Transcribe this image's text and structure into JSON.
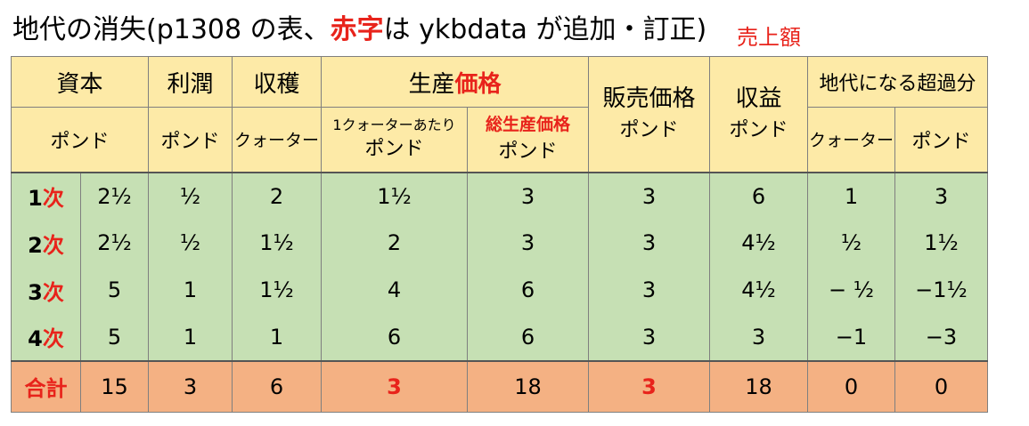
{
  "title": {
    "prefix": "地代の消失(p1308 の表、",
    "red_word": "赤字",
    "suffix": "は ykbdata が追加・訂正)"
  },
  "annotation": "売上額",
  "columns": {
    "capital": {
      "top": "資本",
      "unit": "ポンド"
    },
    "profit": {
      "top": "利潤",
      "unit": "ポンド"
    },
    "harvest": {
      "top": "収穫",
      "unit": "クォーター"
    },
    "production_price": {
      "top_black": "生産",
      "top_red": "価格"
    },
    "per_quarter": {
      "top": "1クォーターあたり",
      "unit": "ポンド"
    },
    "total_production_price": {
      "top": "総生産価格",
      "unit": "ポンド"
    },
    "selling_price": {
      "top": "販売価格",
      "unit": "ポンド"
    },
    "revenue": {
      "top": "収益",
      "unit": "ポンド"
    },
    "rent_surplus": {
      "top": "地代になる超過分"
    },
    "rent_quarter": {
      "unit": "クォーター"
    },
    "rent_pound": {
      "unit": "ポンド"
    }
  },
  "rows": [
    {
      "num": "1",
      "kanji": "次",
      "capital": "2¹⁄₂",
      "profit": "¹⁄₂",
      "harvest": "2",
      "per_quarter": "1¹⁄₂",
      "total_price": "3",
      "selling_price": "3",
      "revenue": "6",
      "rent_quarter": "1",
      "rent_pound": "3"
    },
    {
      "num": "2",
      "kanji": "次",
      "capital": "2¹⁄₂",
      "profit": "¹⁄₂",
      "harvest": "1¹⁄₂",
      "per_quarter": "2",
      "total_price": "3",
      "selling_price": "3",
      "revenue": "4¹⁄₂",
      "rent_quarter": "¹⁄₂",
      "rent_pound": "1¹⁄₂"
    },
    {
      "num": "3",
      "kanji": "次",
      "capital": "5",
      "profit": "1",
      "harvest": "1¹⁄₂",
      "per_quarter": "4",
      "total_price": "6",
      "selling_price": "3",
      "revenue": "4¹⁄₂",
      "rent_quarter": "− ¹⁄₂",
      "rent_pound": "−1¹⁄₂"
    },
    {
      "num": "4",
      "kanji": "次",
      "capital": "5",
      "profit": "1",
      "harvest": "1",
      "per_quarter": "6",
      "total_price": "6",
      "selling_price": "3",
      "revenue": "3",
      "rent_quarter": "−1",
      "rent_pound": "−3"
    }
  ],
  "total": {
    "label": "合計",
    "capital": "15",
    "profit": "3",
    "harvest": "6",
    "per_quarter": "3",
    "total_price": "18",
    "selling_price": "3",
    "revenue": "18",
    "rent_quarter": "0",
    "rent_pound": "0"
  },
  "colors": {
    "header_bg": "#fdeaa7",
    "body_bg": "#c6e0b4",
    "total_bg": "#f4b183",
    "accent_red": "#e8231b"
  }
}
